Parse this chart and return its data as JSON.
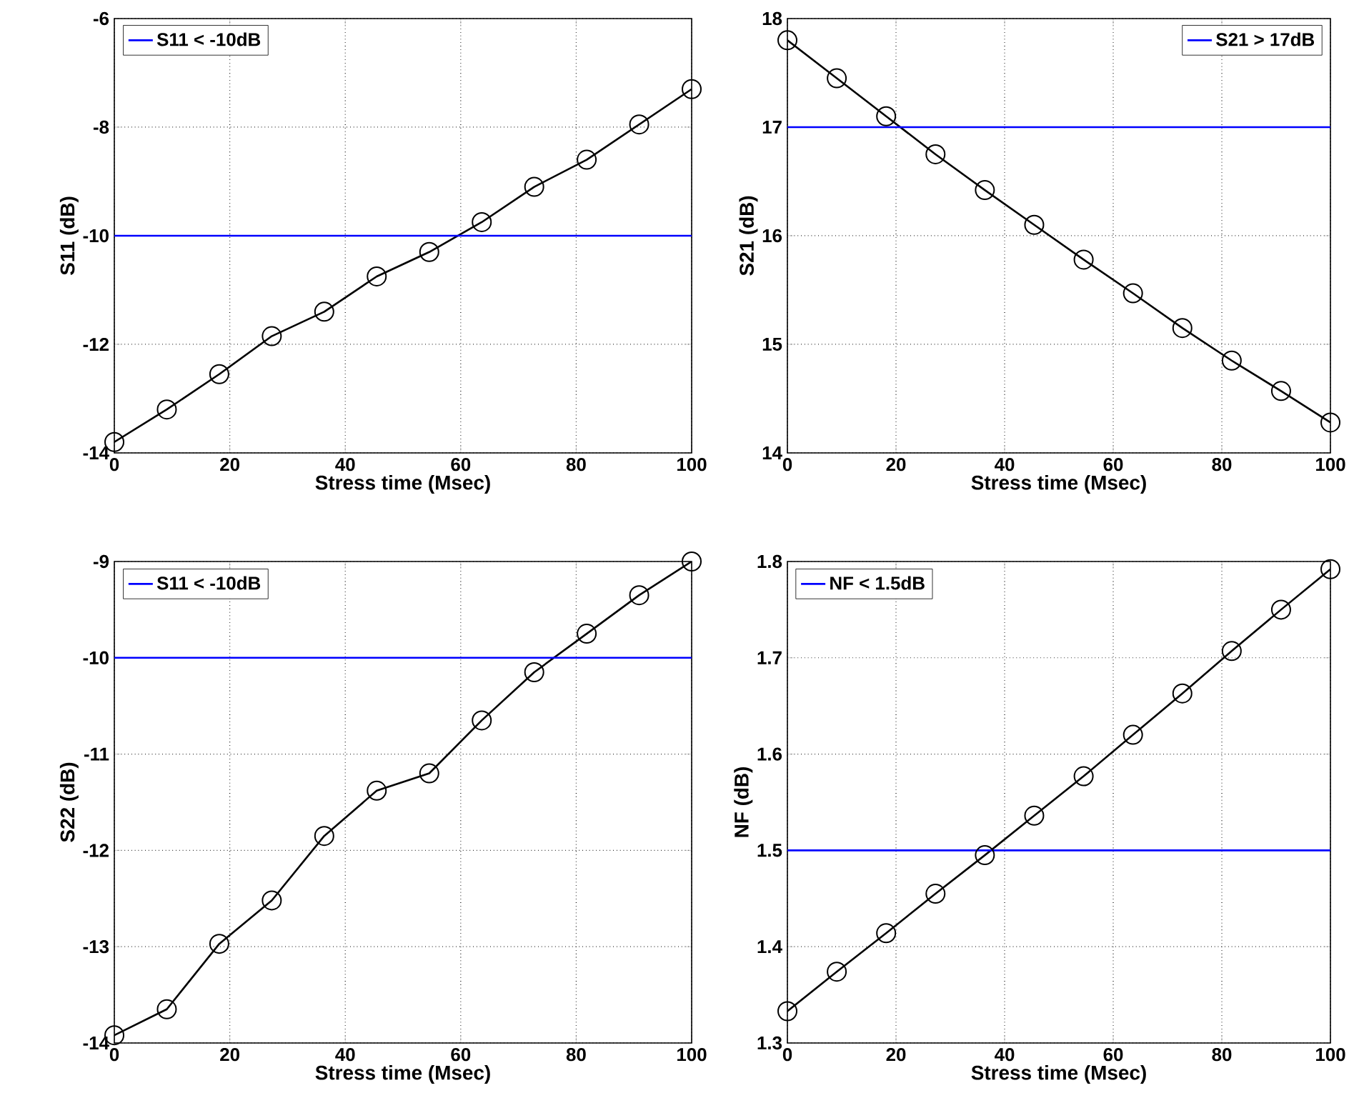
{
  "chart_data": [
    {
      "type": "line",
      "xlabel": "Stress time (Msec)",
      "ylabel": "S11 (dB)",
      "x": [
        0,
        9.09,
        18.18,
        27.27,
        36.36,
        45.45,
        54.55,
        63.64,
        72.73,
        81.82,
        90.91,
        100
      ],
      "series": [
        {
          "color": "#000000",
          "values": [
            -13.8,
            -13.2,
            -12.55,
            -11.85,
            -11.4,
            -10.75,
            -10.3,
            -9.75,
            -9.1,
            -8.6,
            -7.95,
            -7.3
          ]
        }
      ],
      "xlim": [
        0,
        100
      ],
      "xticks": [
        0,
        20,
        40,
        60,
        80,
        100
      ],
      "ylim": [
        -14,
        -6
      ],
      "yticks": [
        -14,
        -12,
        -10,
        -8,
        -6
      ],
      "ref_lines": [
        {
          "axis": "y",
          "value": -10,
          "label": "S11 < -10dB",
          "color": "#0000ff"
        }
      ],
      "grid": true,
      "legend": "top left",
      "marker": "circle",
      "line_style": "solid"
    },
    {
      "type": "line",
      "xlabel": "Stress time (Msec)",
      "ylabel": "S21 (dB)",
      "x": [
        0,
        9.09,
        18.18,
        27.27,
        36.36,
        45.45,
        54.55,
        63.64,
        72.73,
        81.82,
        90.91,
        100
      ],
      "series": [
        {
          "color": "#000000",
          "values": [
            17.8,
            17.45,
            17.1,
            16.75,
            16.42,
            16.1,
            15.78,
            15.47,
            15.15,
            14.85,
            14.57,
            14.28
          ]
        }
      ],
      "xlim": [
        0,
        100
      ],
      "xticks": [
        0,
        20,
        40,
        60,
        80,
        100
      ],
      "ylim": [
        14,
        18
      ],
      "yticks": [
        14,
        15,
        16,
        17,
        18
      ],
      "ref_lines": [
        {
          "axis": "y",
          "value": 17,
          "label": "S21 > 17dB",
          "color": "#0000ff"
        }
      ],
      "grid": true,
      "legend": "top right",
      "marker": "circle",
      "line_style": "solid"
    },
    {
      "type": "line",
      "xlabel": "Stress time (Msec)",
      "ylabel": "S22 (dB)",
      "x": [
        0,
        9.09,
        18.18,
        27.27,
        36.36,
        45.45,
        54.55,
        63.64,
        72.73,
        81.82,
        90.91,
        100
      ],
      "series": [
        {
          "color": "#000000",
          "values": [
            -13.92,
            -13.65,
            -12.97,
            -12.52,
            -11.85,
            -11.38,
            -11.2,
            -10.65,
            -10.15,
            -9.75,
            -9.35,
            -9.0
          ]
        }
      ],
      "xlim": [
        0,
        100
      ],
      "xticks": [
        0,
        20,
        40,
        60,
        80,
        100
      ],
      "ylim": [
        -14,
        -9
      ],
      "yticks": [
        -14,
        -13,
        -12,
        -11,
        -10,
        -9
      ],
      "ref_lines": [
        {
          "axis": "y",
          "value": -10,
          "label": "S11 < -10dB",
          "color": "#0000ff"
        }
      ],
      "grid": true,
      "legend": "top left",
      "marker": "circle",
      "line_style": "solid"
    },
    {
      "type": "line",
      "xlabel": "Stress time (Msec)",
      "ylabel": "NF (dB)",
      "x": [
        0,
        9.09,
        18.18,
        27.27,
        36.36,
        45.45,
        54.55,
        63.64,
        72.73,
        81.82,
        90.91,
        100
      ],
      "series": [
        {
          "color": "#000000",
          "values": [
            1.333,
            1.374,
            1.414,
            1.455,
            1.495,
            1.536,
            1.577,
            1.62,
            1.663,
            1.707,
            1.75,
            1.792
          ]
        }
      ],
      "xlim": [
        0,
        100
      ],
      "xticks": [
        0,
        20,
        40,
        60,
        80,
        100
      ],
      "ylim": [
        1.3,
        1.8
      ],
      "yticks": [
        1.3,
        1.4,
        1.5,
        1.6,
        1.7,
        1.8
      ],
      "ref_lines": [
        {
          "axis": "y",
          "value": 1.5,
          "label": "NF < 1.5dB",
          "color": "#0000ff"
        }
      ],
      "grid": true,
      "legend": "top left",
      "marker": "circle",
      "line_style": "solid"
    }
  ]
}
